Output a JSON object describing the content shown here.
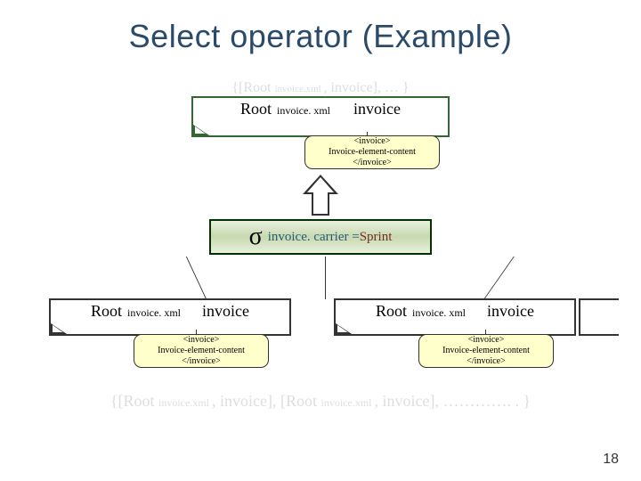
{
  "colors": {
    "title": "#2a4a6a",
    "faded": "#dedede",
    "top_box_border": "#336633",
    "sigma_border": "#003300",
    "sigma_bg_light": "#e9f0dd",
    "sigma_bg_dark": "#c7d9b0",
    "callout_bg": "#ffffcc",
    "black": "#000000",
    "sigma_text": "#2a5a7a",
    "carrier_text": "#7a2a2a"
  },
  "title": "Select operator (Example)",
  "seq_top": {
    "open": "{[Root ",
    "sub": "invoice.xml ",
    "mid": ", invoice], … }",
    "full_plain": "{[Root invoice.xml , invoice], … }"
  },
  "top_box": {
    "root": "Root",
    "sub": "invoice. xml",
    "inv": "invoice"
  },
  "callout": {
    "l1": "<invoice>",
    "l2": "Invoice-element-content",
    "l3": "</invoice>"
  },
  "sigma": {
    "symbol": "σ",
    "attr": "invoice. carrier",
    "eq": " =",
    "val": "Sprint"
  },
  "low_left": {
    "root": "Root",
    "sub": "invoice. xml",
    "inv": "invoice"
  },
  "low_right": {
    "root": "Root",
    "sub": "invoice. xml",
    "inv": "invoice"
  },
  "seq_bot": {
    "text_pre1": "{[Root ",
    "sub1": "invoice.xml ",
    "mid1": ", invoice], [Root ",
    "sub2": "invoice.xml ",
    "mid2": ", invoice], …………. . }"
  },
  "pagenum": "18"
}
